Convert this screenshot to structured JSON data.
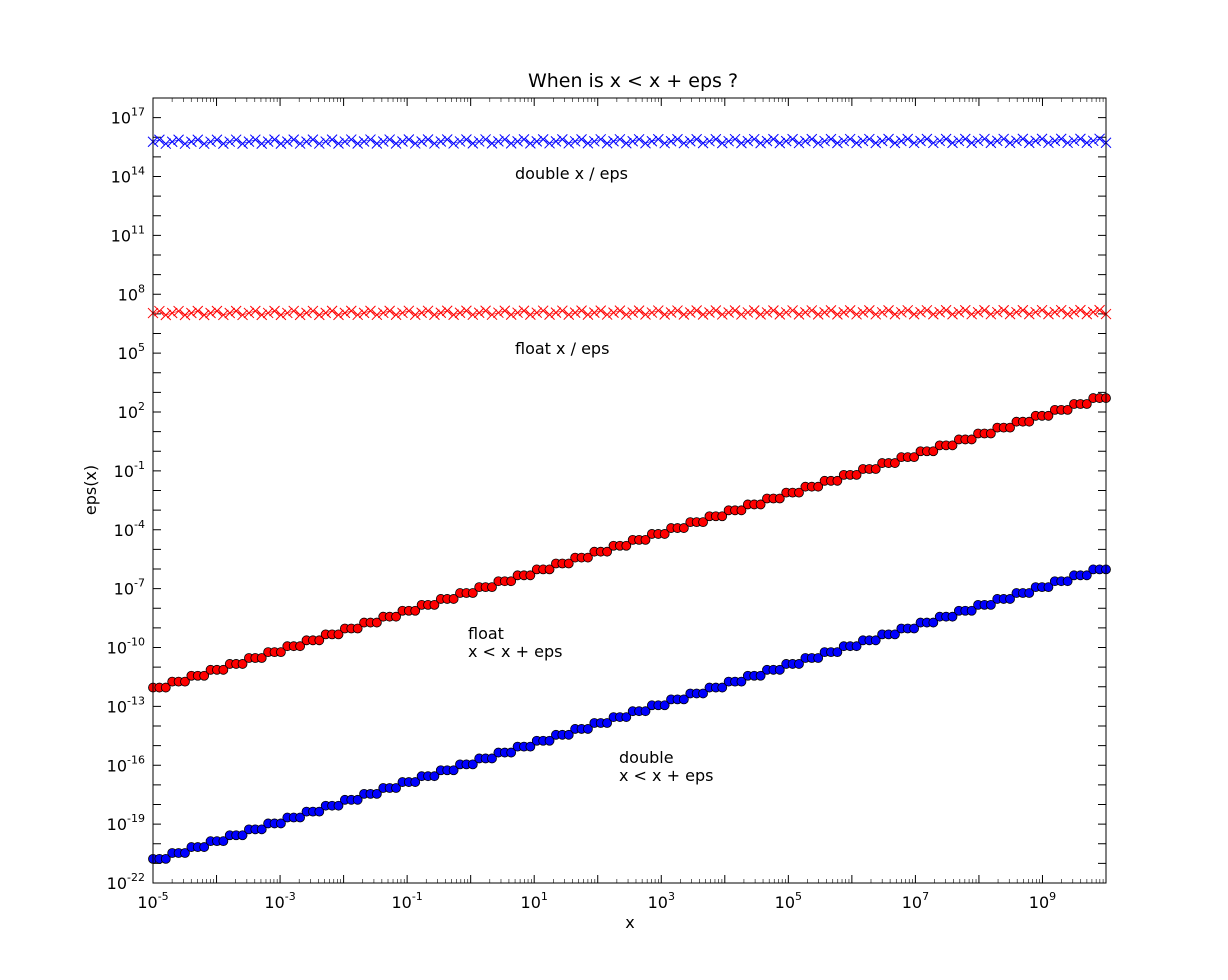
{
  "chart_data": {
    "type": "scatter",
    "title": "When is x < x + eps ?",
    "xlabel": "x",
    "ylabel": "eps(x)",
    "xscale": "log",
    "yscale": "log",
    "xlim": [
      1e-05,
      10000000000
    ],
    "ylim": [
      1e-22,
      1e+18
    ],
    "grid": false,
    "x_ticks": [
      {
        "base": "10",
        "exp": "-5"
      },
      {
        "base": "10",
        "exp": "-3"
      },
      {
        "base": "10",
        "exp": "-1"
      },
      {
        "base": "10",
        "exp": "1"
      },
      {
        "base": "10",
        "exp": "3"
      },
      {
        "base": "10",
        "exp": "5"
      },
      {
        "base": "10",
        "exp": "7"
      },
      {
        "base": "10",
        "exp": "9"
      }
    ],
    "y_ticks": [
      {
        "base": "10",
        "exp": "-22"
      },
      {
        "base": "10",
        "exp": "-19"
      },
      {
        "base": "10",
        "exp": "-16"
      },
      {
        "base": "10",
        "exp": "-13"
      },
      {
        "base": "10",
        "exp": "-10"
      },
      {
        "base": "10",
        "exp": "-7"
      },
      {
        "base": "10",
        "exp": "-4"
      },
      {
        "base": "10",
        "exp": "-1"
      },
      {
        "base": "10",
        "exp": "2"
      },
      {
        "base": "10",
        "exp": "5"
      },
      {
        "base": "10",
        "exp": "8"
      },
      {
        "base": "10",
        "exp": "11"
      },
      {
        "base": "10",
        "exp": "14"
      },
      {
        "base": "10",
        "exp": "17"
      }
    ],
    "annotations": [
      {
        "lines": [
          "double  x / eps"
        ]
      },
      {
        "lines": [
          "float  x / eps"
        ]
      },
      {
        "lines": [
          "float",
          "x < x + eps"
        ]
      },
      {
        "lines": [
          "double",
          "x < x + eps"
        ]
      }
    ],
    "series": [
      {
        "label": "double x / eps",
        "marker": "x",
        "color": "#0000ff",
        "x_start": 1e-05,
        "x_end": 10000000000,
        "points": 150,
        "y_range": [
          4500000000000000.0,
          9000000000000000.0
        ]
      },
      {
        "label": "float x / eps",
        "marker": "x",
        "color": "#ff0000",
        "x_start": 1e-05,
        "x_end": 10000000000,
        "points": 150,
        "y_range": [
          8400000.0,
          16800000.0
        ]
      },
      {
        "label": "float x < x + eps",
        "marker": "o",
        "color": "#ff0000",
        "x_start": 1e-05,
        "x_end": 10000000000,
        "points": 150,
        "y_at_xmin": 9.1e-13,
        "y_at_xmax": 1024,
        "step": "power-of-two"
      },
      {
        "label": "double x < x + eps",
        "marker": "o",
        "color": "#0000ff",
        "x_start": 1e-05,
        "x_end": 10000000000,
        "points": 150,
        "y_at_xmin": 1.7e-21,
        "y_at_xmax": 1.9e-06,
        "step": "power-of-two"
      }
    ]
  }
}
